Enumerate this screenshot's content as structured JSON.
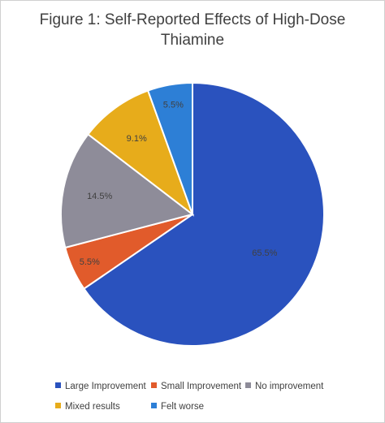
{
  "chart_data": {
    "type": "pie",
    "title_line1": "Figure 1: Self-Reported Effects of High-Dose",
    "title_line2": "Thiamine",
    "categories": [
      "Large Improvement",
      "Small Improvement",
      "No improvement",
      "Mixed results",
      "Felt worse"
    ],
    "values": [
      65.5,
      5.5,
      14.5,
      9.1,
      5.5
    ],
    "data_labels": [
      "65.5%",
      "5.5%",
      "14.5%",
      "9.1%",
      "5.5%"
    ],
    "colors": [
      "#2a52be",
      "#e15b2b",
      "#8e8c99",
      "#e7ac1b",
      "#2d7fd6"
    ],
    "legend_position": "bottom",
    "start": "12 o'clock",
    "direction": "clockwise"
  }
}
